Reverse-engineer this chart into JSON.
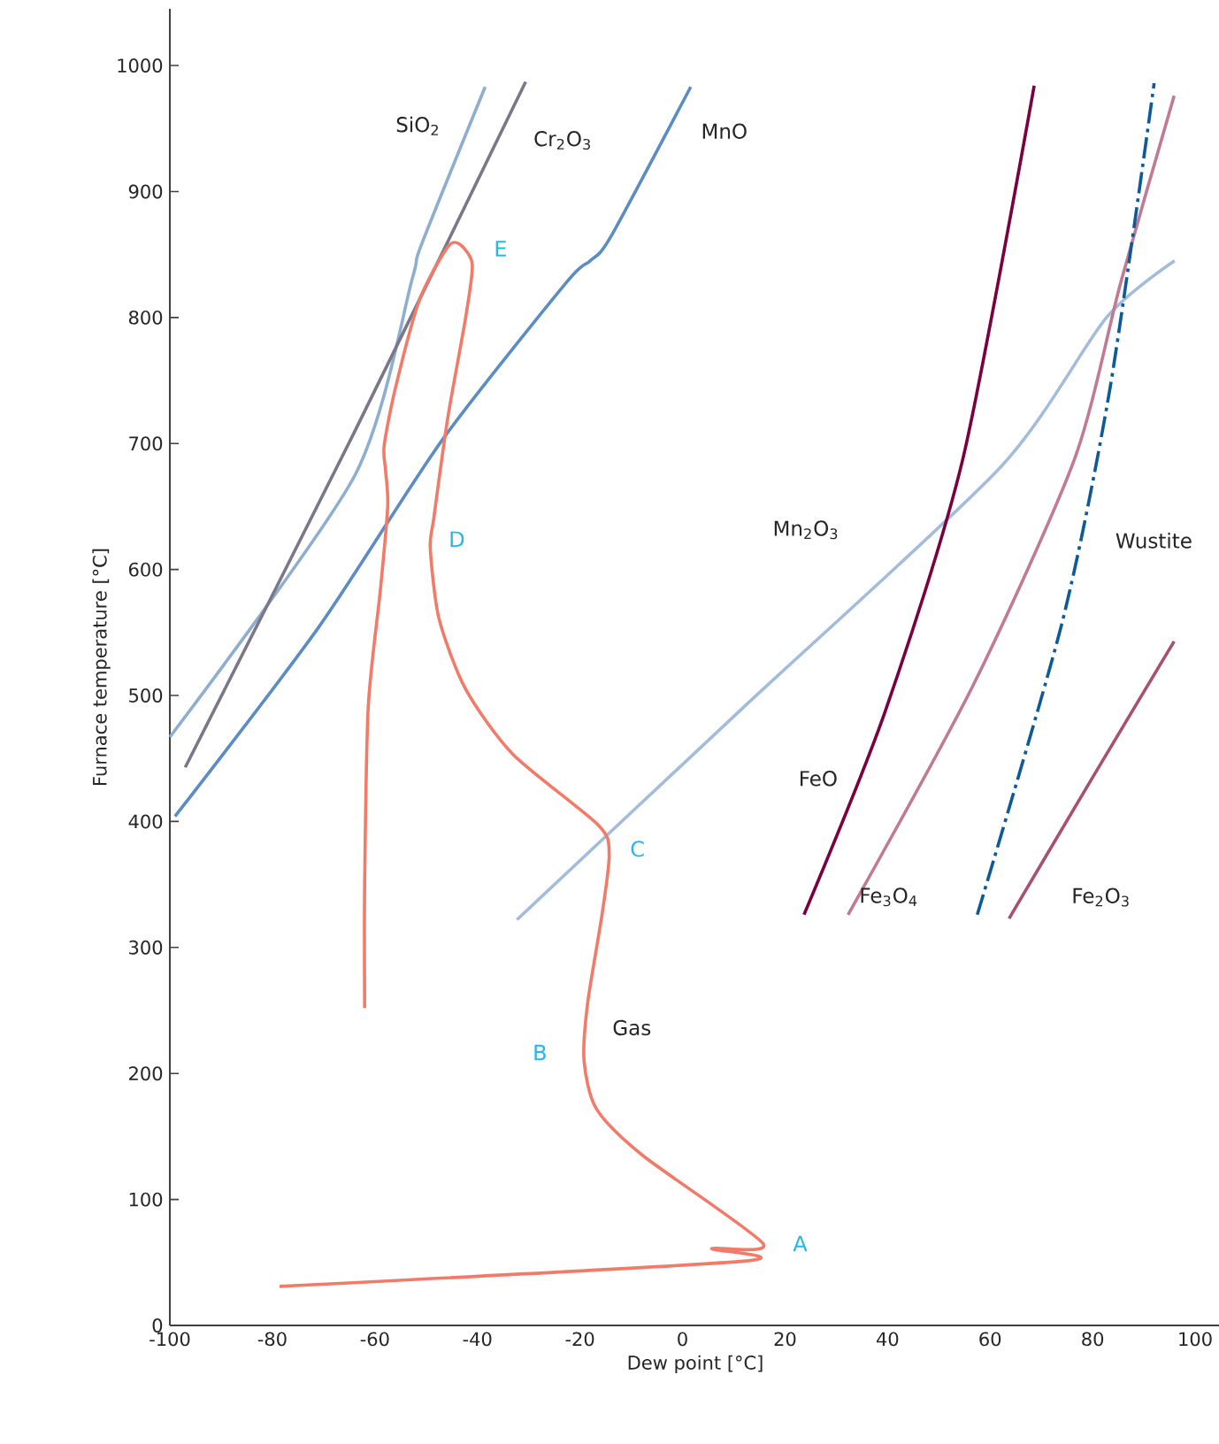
{
  "chart_data": {
    "type": "line",
    "xlabel": "Dew point [°C]",
    "ylabel": "Furnace temperature [°C]",
    "xlim": [
      -100,
      105
    ],
    "ylim": [
      0,
      1045
    ],
    "xticks": [
      -100,
      -80,
      -60,
      -40,
      -20,
      0,
      20,
      40,
      60,
      80,
      100
    ],
    "yticks": [
      0,
      100,
      200,
      300,
      400,
      500,
      600,
      700,
      800,
      900,
      1000
    ],
    "grid": false,
    "legend": false,
    "marker": "none",
    "series": [
      {
        "name": "SiO$_{2}$",
        "color": "#8eaed0",
        "line_style": "solid",
        "x": [
          -100,
          -64,
          -52.7,
          -51,
          -38.5
        ],
        "values": [
          467,
          674,
          831,
          857,
          983
        ]
      },
      {
        "name": "Cr$_{2}$O$_{3}$",
        "color": "#7a7888",
        "line_style": "solid",
        "x": [
          -97,
          -64,
          -30.6
        ],
        "values": [
          443,
          709,
          987
        ]
      },
      {
        "name": "MnO",
        "color": "#5b8cc4",
        "line_style": "solid",
        "x": [
          -99,
          -71,
          -47,
          -22.6,
          -18,
          -14,
          1.6
        ],
        "values": [
          404,
          554,
          702,
          828,
          845,
          864,
          983
        ]
      },
      {
        "name": "Mn$_{2}$O$_{3}$",
        "color": "#a3bcdc",
        "line_style": "solid",
        "x": [
          -32.3,
          12,
          62,
          82.7,
          96
        ],
        "values": [
          322,
          491,
          681,
          800,
          845
        ]
      },
      {
        "name": "FeO",
        "color": "#7a0040",
        "line_style": "solid",
        "x": [
          23.7,
          39.5,
          54.7,
          68.6
        ],
        "values": [
          326,
          487,
          688,
          984
        ]
      },
      {
        "name": "Fe$_{3}$O$_{4}$",
        "color": "#c07a92",
        "line_style": "solid",
        "x": [
          32.3,
          56.8,
          76.5,
          85.5,
          95.9
        ],
        "values": [
          326,
          509,
          688,
          828,
          976
        ]
      },
      {
        "name": "Wustite",
        "color": "#0c5a96",
        "line_style": "dashdot",
        "x": [
          57.5,
          74,
          83.4,
          92
        ],
        "values": [
          326,
          557,
          744,
          986
        ]
      },
      {
        "name": "Fe$_{2}$O$_{3}$",
        "color": "#a8506e",
        "line_style": "solid",
        "x": [
          63.7,
          80,
          95.9
        ],
        "values": [
          323,
          435,
          543
        ]
      },
      {
        "name": "Gas",
        "color": "#f27a68",
        "line_style": "solid",
        "x": [
          -78.6,
          11.9,
          5.7,
          15.7,
          -7.8,
          -16.8,
          -19.2,
          -18.5,
          -15.7,
          -14.3,
          -16.4,
          -33,
          -42.3,
          -47.5,
          -49.2,
          -48.5,
          -45.8,
          -42.3,
          -41,
          -43.4,
          -45.8,
          -51.3,
          -56,
          -58.2,
          -57.9,
          -57.5,
          -58.9,
          -61.3,
          -62,
          -62
        ],
        "values": [
          31,
          51,
          61,
          65,
          135,
          172,
          210,
          256,
          326,
          374,
          397,
          453,
          505,
          561,
          617,
          641,
          720,
          800,
          842,
          858,
          856,
          814,
          744,
          698,
          678,
          650,
          585,
          491,
          350,
          252
        ]
      }
    ],
    "annotations": [
      "A",
      "B",
      "C",
      "D",
      "E"
    ]
  }
}
